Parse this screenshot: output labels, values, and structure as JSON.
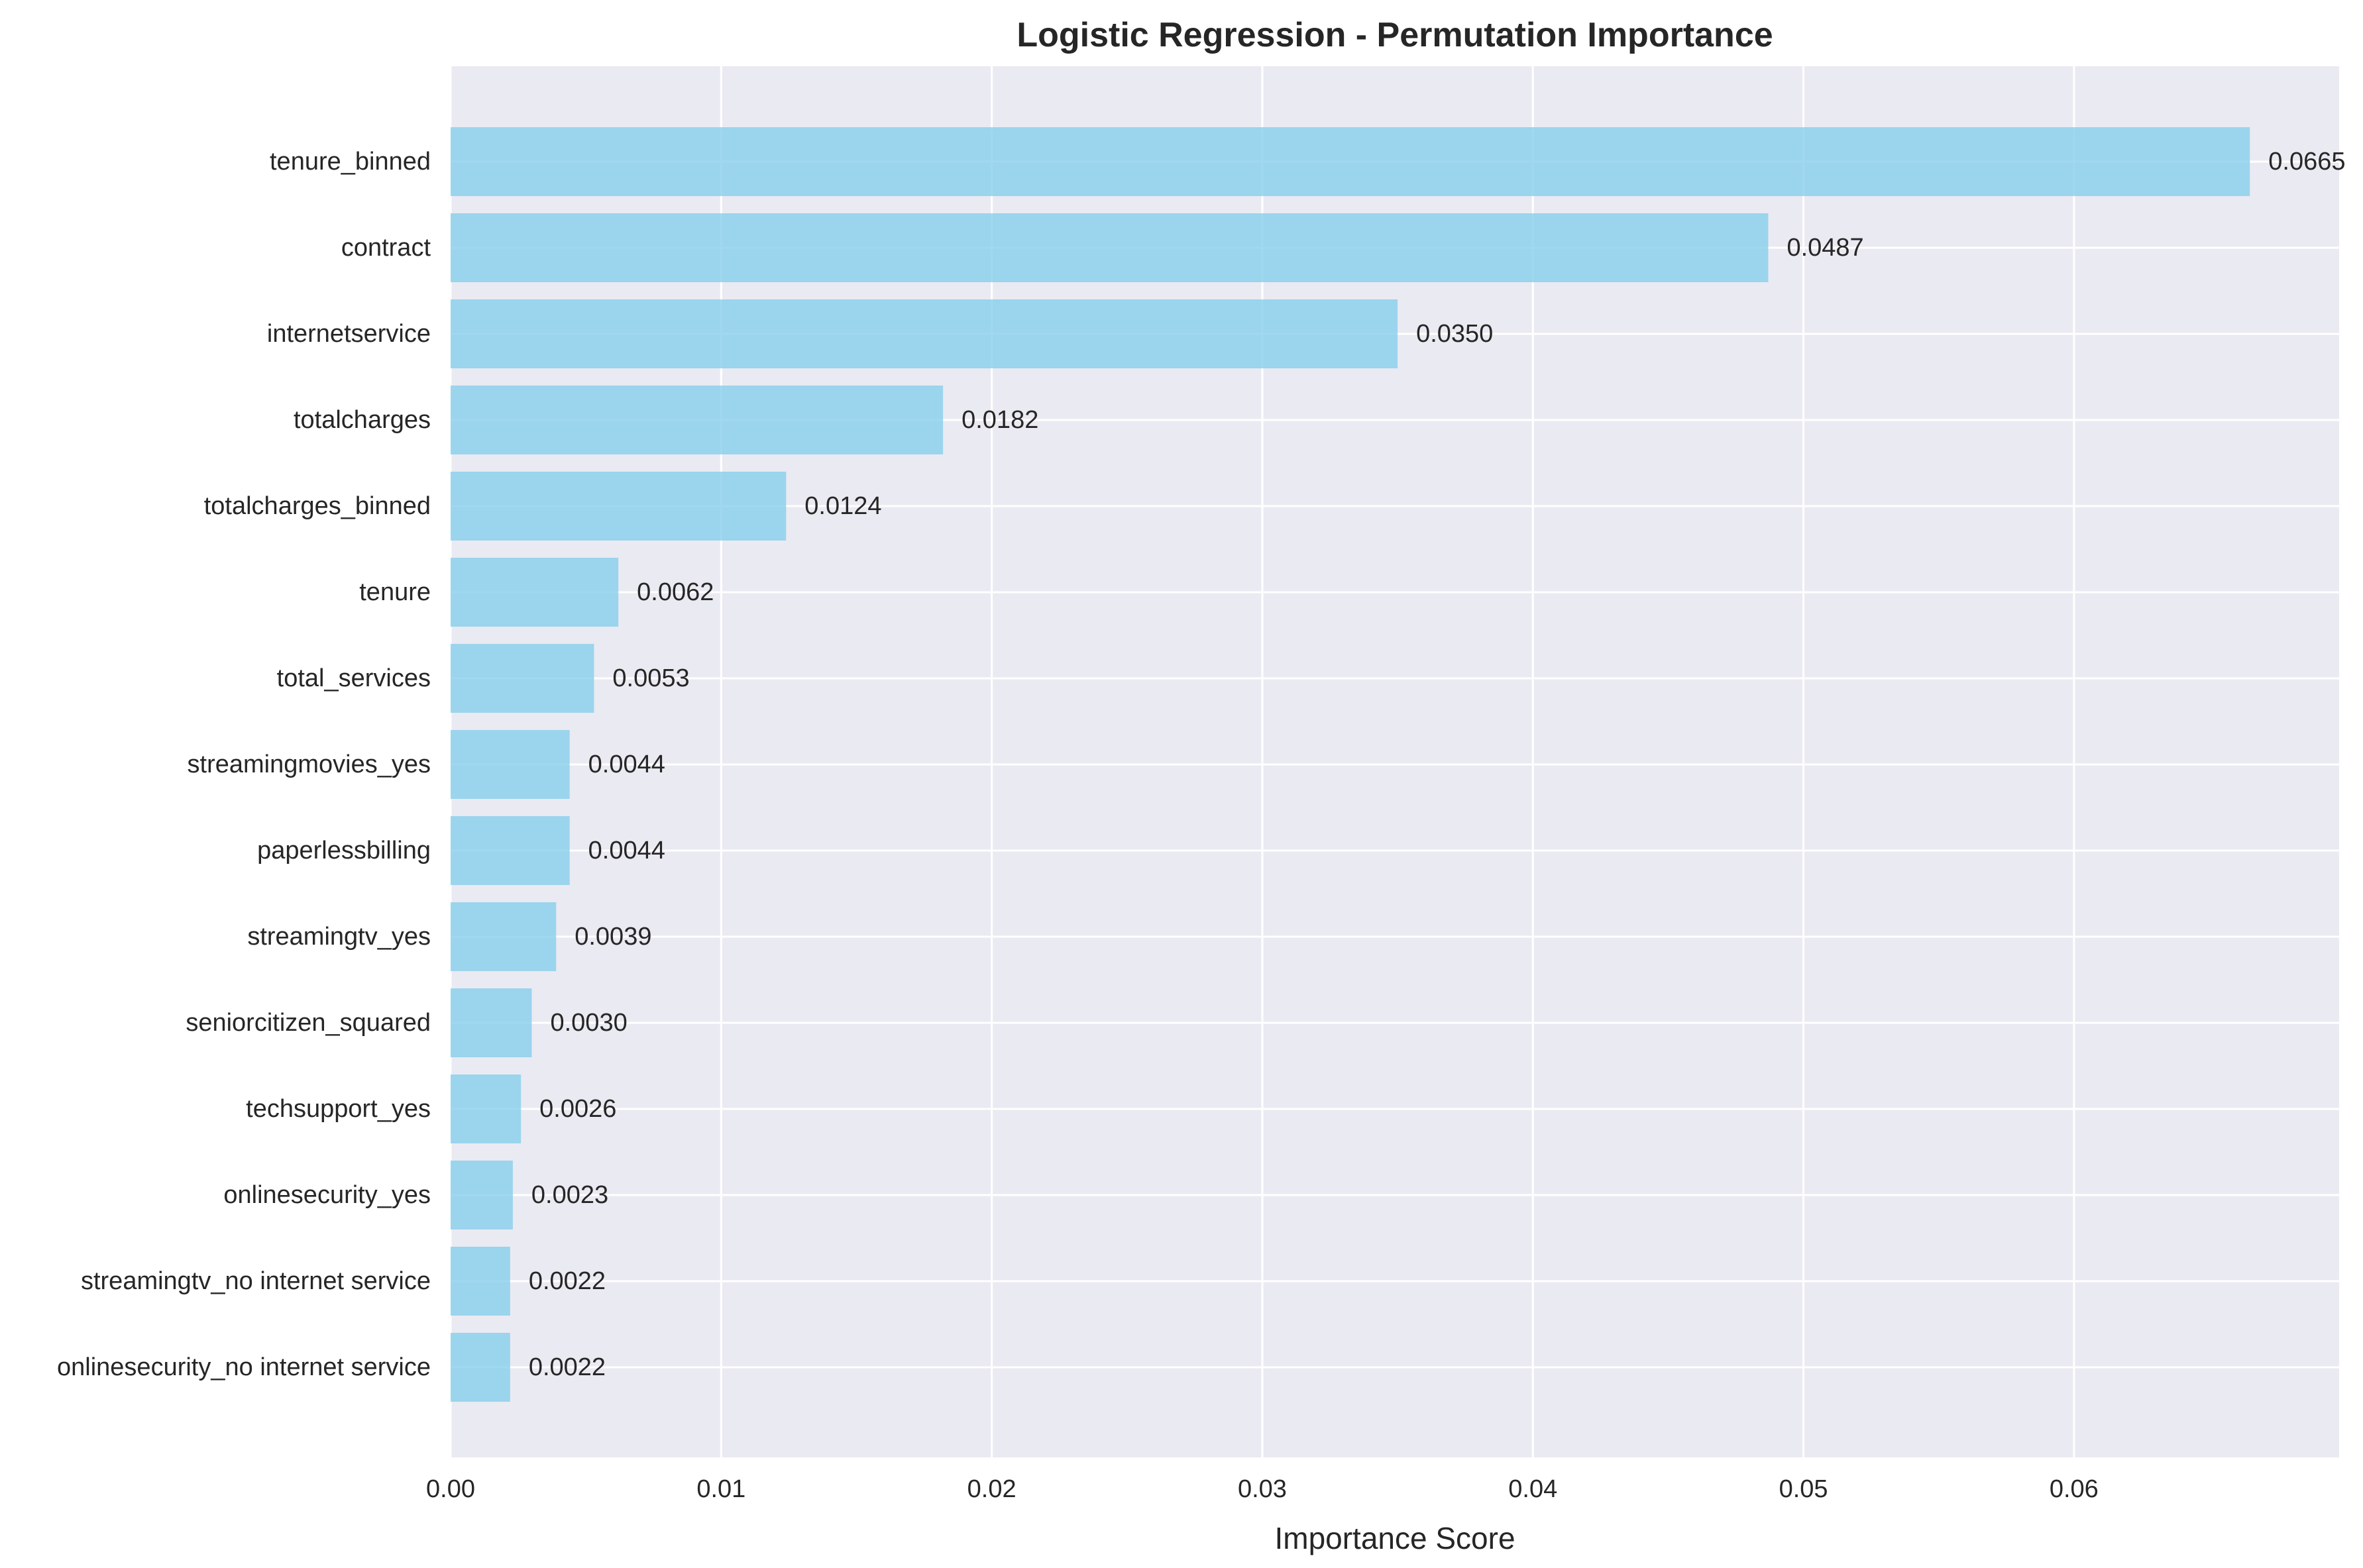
{
  "chart_data": {
    "type": "bar",
    "orientation": "horizontal",
    "title": "Logistic Regression - Permutation Importance",
    "xlabel": "Importance Score",
    "ylabel": "",
    "xlim": [
      0,
      0.0698
    ],
    "xticks": [
      0.0,
      0.01,
      0.02,
      0.03,
      0.04,
      0.05,
      0.06
    ],
    "xtick_labels": [
      "0.00",
      "0.01",
      "0.02",
      "0.03",
      "0.04",
      "0.05",
      "0.06"
    ],
    "grid": true,
    "categories": [
      "tenure_binned",
      "contract",
      "internetservice",
      "totalcharges",
      "totalcharges_binned",
      "tenure",
      "total_services",
      "streamingmovies_yes",
      "paperlessbilling",
      "streamingtv_yes",
      "seniorcitizen_squared",
      "techsupport_yes",
      "onlinesecurity_yes",
      "streamingtv_no internet service",
      "onlinesecurity_no internet service"
    ],
    "values": [
      0.0665,
      0.0487,
      0.035,
      0.0182,
      0.0124,
      0.0062,
      0.0053,
      0.0044,
      0.0044,
      0.0039,
      0.003,
      0.0026,
      0.0023,
      0.0022,
      0.0022
    ],
    "value_labels": [
      "0.0665",
      "0.0487",
      "0.0350",
      "0.0182",
      "0.0124",
      "0.0062",
      "0.0053",
      "0.0044",
      "0.0044",
      "0.0039",
      "0.0030",
      "0.0026",
      "0.0023",
      "0.0022",
      "0.0022"
    ],
    "colors": {
      "bar": "#87ceeb",
      "background": "#eaeaf2",
      "grid": "#ffffff",
      "text": "#262626"
    }
  }
}
